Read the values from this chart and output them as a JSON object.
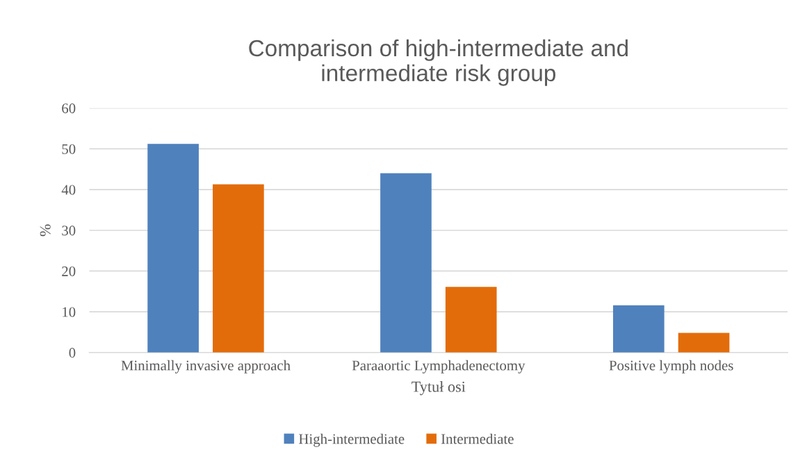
{
  "chart_data": {
    "type": "bar",
    "title": "Comparison of high-intermediate and\nintermediate risk group",
    "xlabel": "Tytuł osi",
    "ylabel": "%",
    "categories": [
      "Minimally invasive approach",
      "Paraaortic Lymphadenectomy",
      "Positive lymph nodes"
    ],
    "series": [
      {
        "name": "High-intermediate",
        "color": "#4f81bd",
        "values": [
          51.2,
          44.0,
          11.6
        ]
      },
      {
        "name": "Intermediate",
        "color": "#e36c0a",
        "values": [
          41.3,
          16.1,
          4.8
        ]
      }
    ],
    "ylim": [
      0,
      60
    ],
    "yticks": [
      0,
      10,
      20,
      30,
      40,
      50,
      60
    ],
    "grid": "y",
    "legend": "bottom"
  }
}
